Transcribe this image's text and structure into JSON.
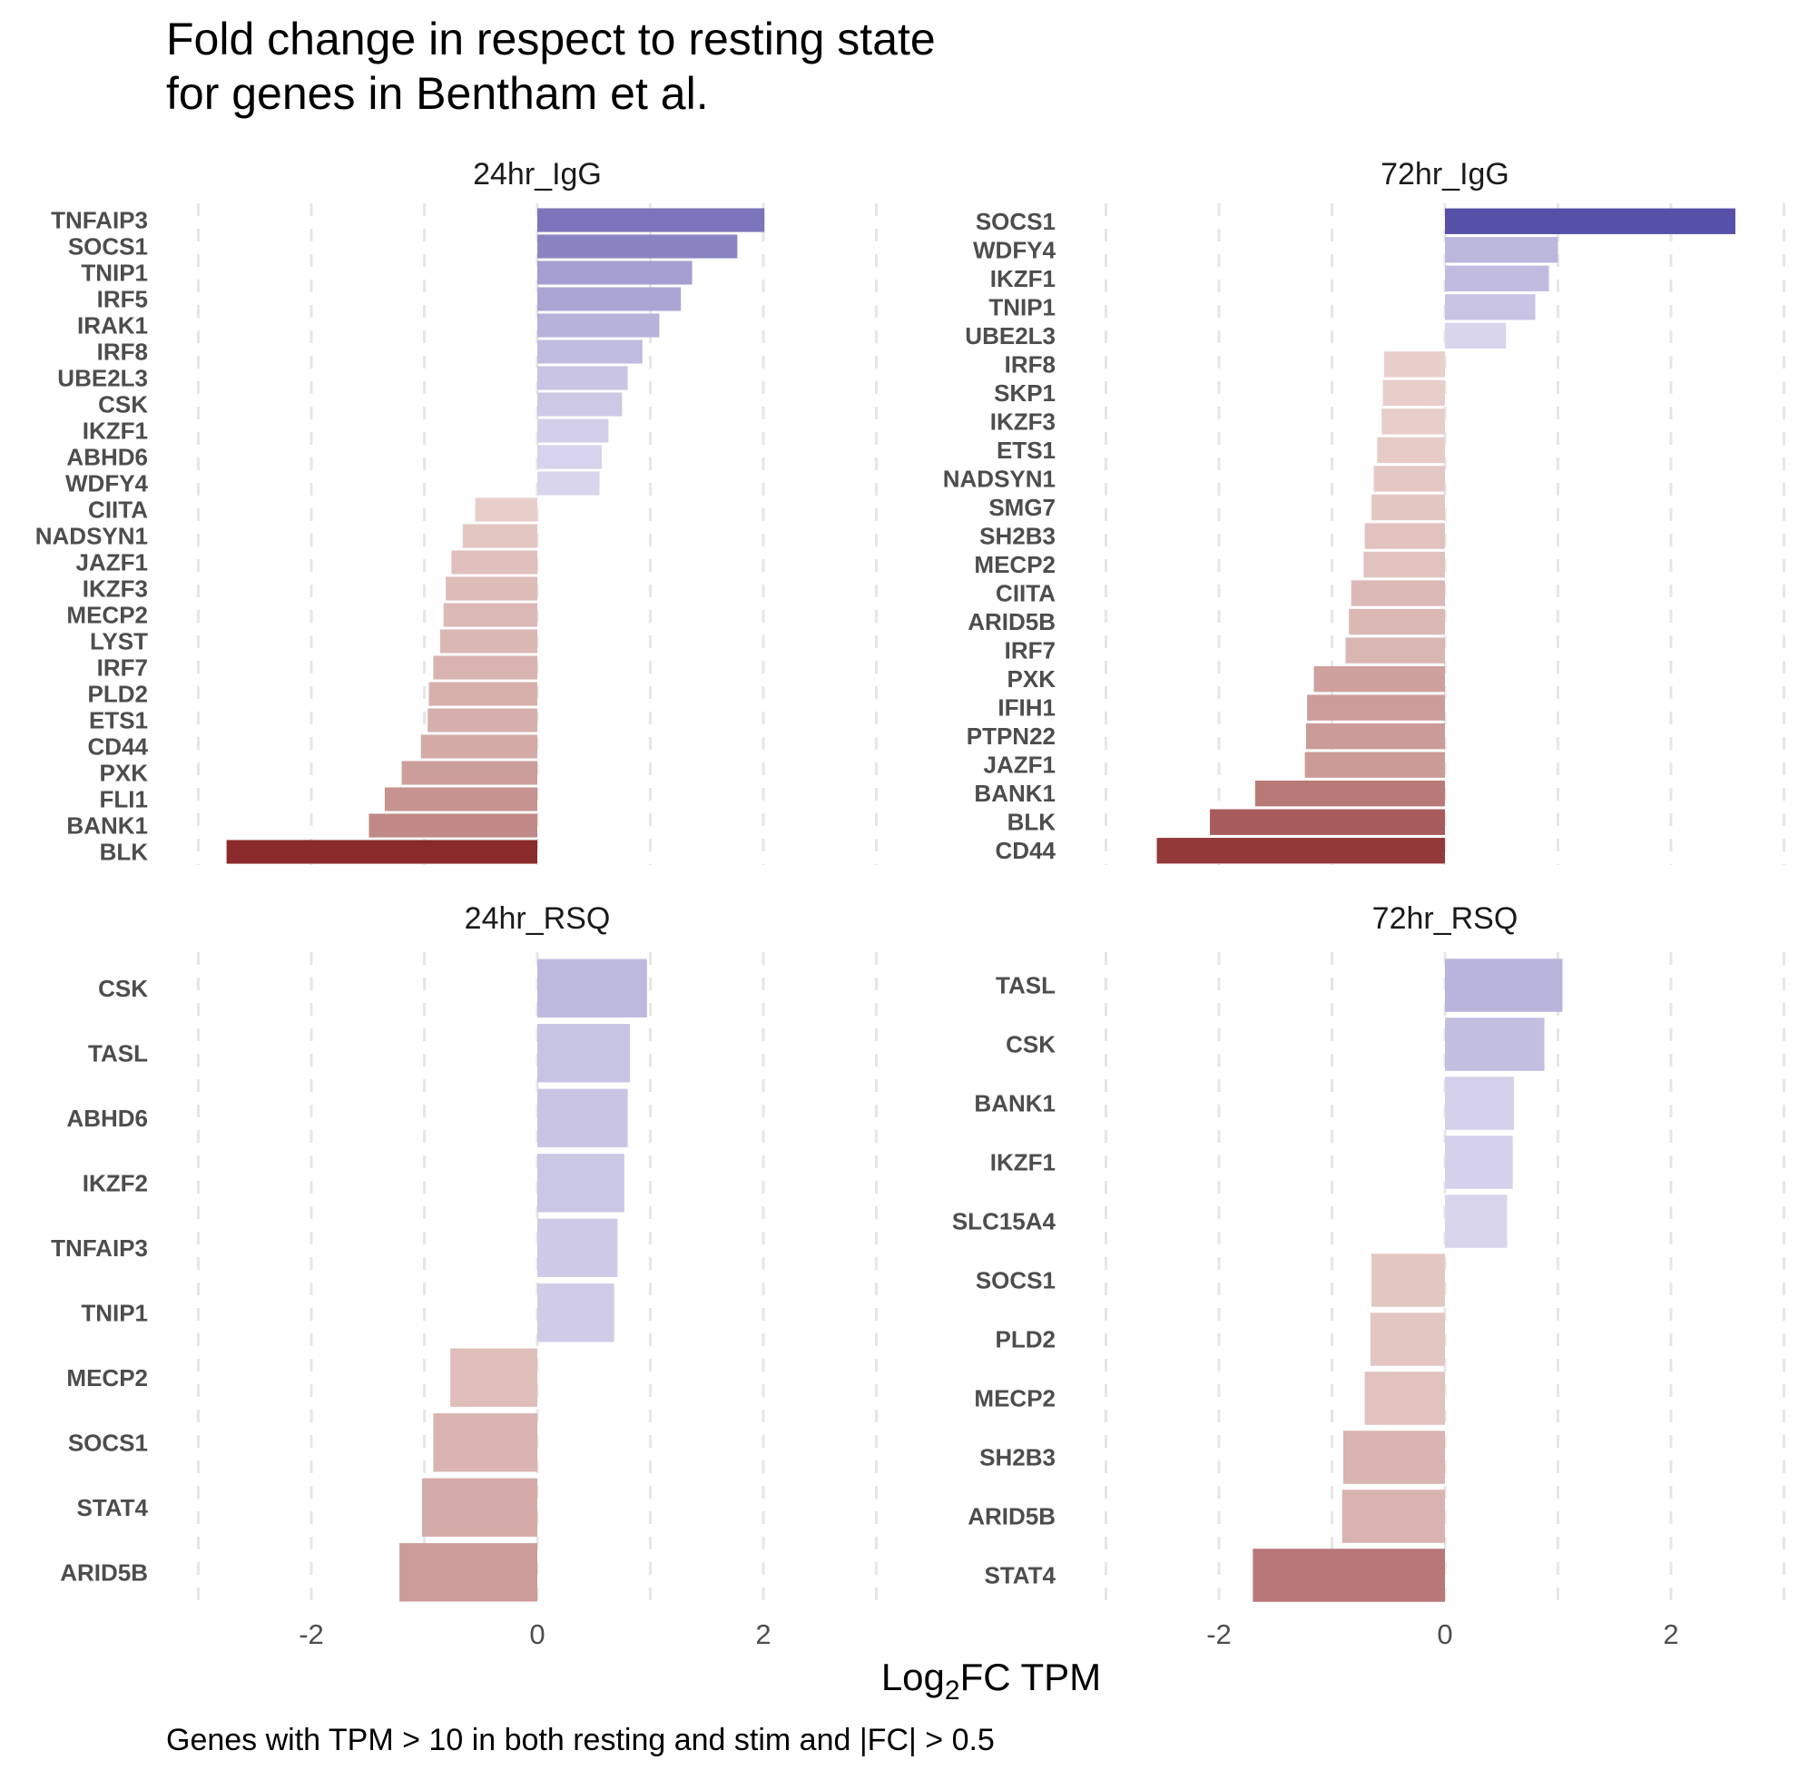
{
  "chart_data": {
    "type": "bar",
    "orientation": "horizontal",
    "title": [
      "Fold change in respect to resting state",
      "for genes in Bentham et al."
    ],
    "xlabel_main": "Log",
    "xlabel_sub": "2",
    "xlabel_rest": "FC TPM",
    "caption": "Genes with TPM > 10 in both resting and stim and |FC| > 0.5",
    "xlim": [
      -3,
      3
    ],
    "x_ticks": [
      -2,
      0,
      2
    ],
    "x_tick_labels": [
      "-2",
      "0",
      "2"
    ],
    "grid": "vertical dashed",
    "colors": {
      "positive_max": "#4a44a0",
      "positive_min": "#dcd8ee",
      "negative_min": "#ead2ce",
      "negative_max": "#8b2a2a"
    },
    "panels": [
      {
        "strip": "24hr_IgG",
        "categories": [
          "TNFAIP3",
          "SOCS1",
          "TNIP1",
          "IRF5",
          "IRAK1",
          "IRF8",
          "UBE2L3",
          "CSK",
          "IKZF1",
          "ABHD6",
          "WDFY4",
          "CIITA",
          "NADSYN1",
          "JAZF1",
          "IKZF3",
          "MECP2",
          "LYST",
          "IRF7",
          "PLD2",
          "ETS1",
          "CD44",
          "PXK",
          "FLI1",
          "BANK1",
          "BLK"
        ],
        "values": [
          2.01,
          1.77,
          1.37,
          1.27,
          1.08,
          0.93,
          0.8,
          0.75,
          0.63,
          0.57,
          0.55,
          -0.55,
          -0.66,
          -0.76,
          -0.81,
          -0.83,
          -0.86,
          -0.92,
          -0.96,
          -0.97,
          -1.03,
          -1.2,
          -1.35,
          -1.49,
          -2.75
        ]
      },
      {
        "strip": "72hr_IgG",
        "categories": [
          "SOCS1",
          "WDFY4",
          "IKZF1",
          "TNIP1",
          "UBE2L3",
          "IRF8",
          "SKP1",
          "IKZF3",
          "ETS1",
          "NADSYN1",
          "SMG7",
          "SH2B3",
          "MECP2",
          "CIITA",
          "ARID5B",
          "IRF7",
          "PXK",
          "IFIH1",
          "PTPN22",
          "JAZF1",
          "BANK1",
          "BLK",
          "CD44"
        ],
        "values": [
          2.57,
          1.0,
          0.92,
          0.8,
          0.54,
          -0.54,
          -0.55,
          -0.56,
          -0.6,
          -0.63,
          -0.65,
          -0.71,
          -0.72,
          -0.83,
          -0.85,
          -0.88,
          -1.16,
          -1.22,
          -1.23,
          -1.24,
          -1.68,
          -2.08,
          -2.55
        ]
      },
      {
        "strip": "24hr_RSQ",
        "categories": [
          "CSK",
          "TASL",
          "ABHD6",
          "IKZF2",
          "TNFAIP3",
          "TNIP1",
          "MECP2",
          "SOCS1",
          "STAT4",
          "ARID5B"
        ],
        "values": [
          0.97,
          0.82,
          0.8,
          0.77,
          0.71,
          0.68,
          -0.77,
          -0.92,
          -1.02,
          -1.22
        ]
      },
      {
        "strip": "72hr_RSQ",
        "categories": [
          "TASL",
          "CSK",
          "BANK1",
          "IKZF1",
          "SLC15A4",
          "SOCS1",
          "PLD2",
          "MECP2",
          "SH2B3",
          "ARID5B",
          "STAT4"
        ],
        "values": [
          1.04,
          0.88,
          0.61,
          0.6,
          0.55,
          -0.65,
          -0.66,
          -0.71,
          -0.9,
          -0.91,
          -1.7
        ]
      }
    ]
  }
}
